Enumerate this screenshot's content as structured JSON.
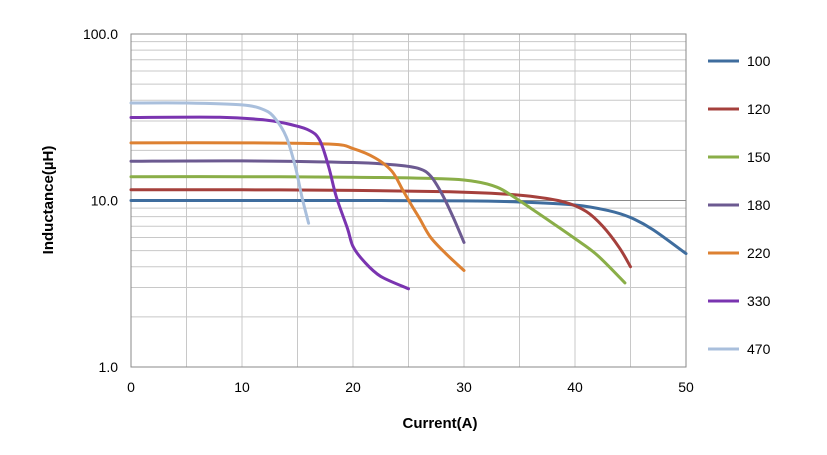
{
  "chart_data": {
    "type": "line",
    "xlabel": "Current(A)",
    "ylabel": "Inductance(µH)",
    "x_scale": "linear",
    "y_scale": "log",
    "xlim": [
      0,
      50
    ],
    "ylim": [
      1.0,
      100.0
    ],
    "x_ticks": [
      0,
      10,
      20,
      30,
      40,
      50
    ],
    "x_tick_labels": [
      "0",
      "10",
      "20",
      "30",
      "40",
      "50"
    ],
    "y_ticks": [
      1.0,
      10.0,
      100.0
    ],
    "y_tick_labels": [
      "1.0",
      "10.0",
      "100.0"
    ],
    "grid": true,
    "legend_position": "right",
    "series": [
      {
        "name": "100",
        "color": "#3f6d9e",
        "points": [
          [
            0,
            10.0
          ],
          [
            10,
            10.0
          ],
          [
            20,
            10.0
          ],
          [
            30,
            9.95
          ],
          [
            35,
            9.8
          ],
          [
            40,
            9.4
          ],
          [
            43,
            8.7
          ],
          [
            45,
            7.9
          ],
          [
            47,
            6.7
          ],
          [
            50,
            4.8
          ]
        ]
      },
      {
        "name": "120",
        "color": "#a5403c",
        "points": [
          [
            0,
            11.6
          ],
          [
            10,
            11.6
          ],
          [
            20,
            11.5
          ],
          [
            28,
            11.3
          ],
          [
            33,
            11.0
          ],
          [
            36,
            10.6
          ],
          [
            39,
            9.8
          ],
          [
            41,
            8.6
          ],
          [
            42.5,
            7.0
          ],
          [
            44,
            5.2
          ],
          [
            45,
            4.0
          ]
        ]
      },
      {
        "name": "150",
        "color": "#8aae48",
        "points": [
          [
            0,
            13.9
          ],
          [
            10,
            13.9
          ],
          [
            20,
            13.8
          ],
          [
            28,
            13.5
          ],
          [
            31,
            13.0
          ],
          [
            33,
            12.0
          ],
          [
            34.5,
            10.5
          ],
          [
            36,
            9.0
          ],
          [
            38,
            7.3
          ],
          [
            40,
            5.9
          ],
          [
            42,
            4.7
          ],
          [
            44.5,
            3.2
          ]
        ]
      },
      {
        "name": "180",
        "color": "#6c5a91",
        "points": [
          [
            0,
            17.2
          ],
          [
            10,
            17.3
          ],
          [
            20,
            16.9
          ],
          [
            24,
            16.3
          ],
          [
            26,
            15.5
          ],
          [
            27,
            14.0
          ],
          [
            28,
            11.0
          ],
          [
            29,
            8.0
          ],
          [
            30,
            5.6
          ]
        ]
      },
      {
        "name": "220",
        "color": "#dd8132",
        "points": [
          [
            0,
            22.2
          ],
          [
            10,
            22.2
          ],
          [
            18,
            21.8
          ],
          [
            20,
            20.5
          ],
          [
            22,
            18.0
          ],
          [
            23.5,
            15.0
          ],
          [
            24.5,
            11.5
          ],
          [
            25.3,
            9.3
          ],
          [
            26,
            7.8
          ],
          [
            27,
            6.0
          ],
          [
            28.5,
            4.7
          ],
          [
            30,
            3.8
          ]
        ]
      },
      {
        "name": "330",
        "color": "#7a34b0",
        "points": [
          [
            0,
            31.5
          ],
          [
            8,
            31.6
          ],
          [
            12,
            30.5
          ],
          [
            14,
            29.0
          ],
          [
            16,
            26.5
          ],
          [
            17,
            23.0
          ],
          [
            17.8,
            16.0
          ],
          [
            18.5,
            10.5
          ],
          [
            19.5,
            6.8
          ],
          [
            20,
            5.3
          ],
          [
            21,
            4.3
          ],
          [
            22.5,
            3.5
          ],
          [
            25,
            2.95
          ]
        ]
      },
      {
        "name": "470",
        "color": "#a9bfdc",
        "points": [
          [
            0,
            38.5
          ],
          [
            5,
            38.5
          ],
          [
            10,
            37.5
          ],
          [
            12,
            35.0
          ],
          [
            13,
            31.0
          ],
          [
            14,
            24.0
          ],
          [
            14.8,
            16.0
          ],
          [
            15.4,
            10.5
          ],
          [
            16,
            7.3
          ]
        ]
      }
    ]
  }
}
